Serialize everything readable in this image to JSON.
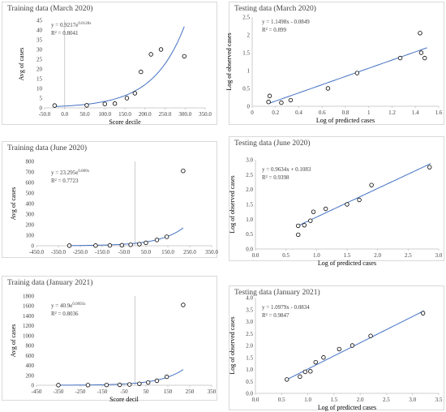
{
  "chart_data": [
    {
      "type": "scatter",
      "title": "Training data (March 2020)",
      "xlabel": "Score decile",
      "ylabel": "Avg of cases",
      "xlim": [
        -50,
        350
      ],
      "ylim": [
        0,
        45
      ],
      "xticks": [
        -50,
        0,
        50,
        100,
        150,
        200,
        250,
        300,
        350
      ],
      "yticks": [
        0,
        5,
        10,
        15,
        20,
        25,
        30,
        35,
        40,
        45
      ],
      "xtick_labels": [
        "-50.0",
        "0.0",
        "50.0",
        "100.0",
        "150.0",
        "200.0",
        "250.0",
        "300.0",
        "350.0"
      ],
      "ytick_labels": [
        "0",
        "5",
        "10",
        "15",
        "20",
        "25",
        "30",
        "35",
        "40",
        "45"
      ],
      "points": [
        [
          -25,
          1.2
        ],
        [
          55,
          1.3
        ],
        [
          100,
          2
        ],
        [
          125,
          2.2
        ],
        [
          155,
          5
        ],
        [
          175,
          7.5
        ],
        [
          190,
          18.5
        ],
        [
          215,
          27.5
        ],
        [
          240,
          30
        ],
        [
          298,
          26.5
        ]
      ],
      "fit": {
        "kind": "exp",
        "a": 0.9217,
        "b": 0.0128,
        "x_from": -25,
        "x_to": 298
      },
      "equation": "y = 0.9217e",
      "equation_exp": "0.0128x",
      "r2": "R² = 0.8041"
    },
    {
      "type": "scatter",
      "title": "Testing data (March 2020)",
      "xlabel": "Log of predicted cases",
      "ylabel": "Log of observed cases",
      "xlim": [
        0,
        1.6
      ],
      "ylim": [
        0,
        2.5
      ],
      "xticks": [
        0,
        0.2,
        0.4,
        0.6,
        0.8,
        1.0,
        1.2,
        1.4,
        1.6
      ],
      "yticks": [
        0,
        0.5,
        1.0,
        1.5,
        2.0,
        2.5
      ],
      "xtick_labels": [
        "0",
        "0.2",
        "0.4",
        "0.6",
        "0.8",
        "1",
        "1.2",
        "1.4",
        "1.6"
      ],
      "ytick_labels": [
        "0",
        "0.5",
        "1",
        "1.5",
        "2",
        "2.5"
      ],
      "points": [
        [
          0.14,
          0.12
        ],
        [
          0.15,
          0.29
        ],
        [
          0.25,
          0.1
        ],
        [
          0.33,
          0.17
        ],
        [
          0.65,
          0.5
        ],
        [
          0.9,
          0.93
        ],
        [
          1.27,
          1.35
        ],
        [
          1.44,
          2.05
        ],
        [
          1.45,
          1.5
        ],
        [
          1.48,
          1.35
        ]
      ],
      "fit": {
        "kind": "linear",
        "m": 1.1498,
        "c": -0.0849,
        "x_from": 0.14,
        "x_to": 1.5
      },
      "equation": "y = 1.1498x - 0.0849",
      "r2": "R² = 0.899"
    },
    {
      "type": "scatter",
      "title": "Training data (June 2020)",
      "xlabel": "",
      "ylabel": "Avg of cases",
      "xlim": [
        -450,
        350
      ],
      "ylim": [
        0,
        800
      ],
      "xticks": [
        -450,
        -350,
        -250,
        -150,
        -50,
        50,
        150,
        250,
        350
      ],
      "yticks": [
        0,
        100,
        200,
        300,
        400,
        500,
        600,
        700,
        800
      ],
      "xtick_labels": [
        "-450.0",
        "-350.0",
        "-250.0",
        "-150.0",
        "-50.0",
        "50.0",
        "150.0",
        "250.0",
        "350.0"
      ],
      "ytick_labels": [
        "0",
        "100",
        "200",
        "300",
        "400",
        "500",
        "600",
        "700",
        "800"
      ],
      "points": [
        [
          -300,
          1
        ],
        [
          -180,
          2
        ],
        [
          -115,
          3
        ],
        [
          -60,
          5
        ],
        [
          -20,
          9
        ],
        [
          20,
          15
        ],
        [
          50,
          28
        ],
        [
          100,
          55
        ],
        [
          145,
          85
        ],
        [
          220,
          710
        ]
      ],
      "fit": {
        "kind": "exp",
        "a": 23.295,
        "b": 0.009,
        "x_from": -300,
        "x_to": 220
      },
      "equation": "y = 23.295e",
      "equation_exp": "0.009x",
      "r2": "R² = 0.7723"
    },
    {
      "type": "scatter",
      "title": "Testing data (June 2020)",
      "xlabel": "Log of predicted cases",
      "ylabel": "Log of observed cases",
      "xlim": [
        0,
        3
      ],
      "ylim": [
        0,
        3
      ],
      "xticks": [
        0,
        0.5,
        1.0,
        1.5,
        2.0,
        2.5,
        3.0
      ],
      "yticks": [
        0,
        0.5,
        1.0,
        1.5,
        2.0,
        2.5,
        3.0
      ],
      "xtick_labels": [
        "0.0",
        "0.5",
        "1.0",
        "1.5",
        "2.0",
        "2.5",
        "3.0"
      ],
      "ytick_labels": [
        "0.0",
        "0.5",
        "1.0",
        "1.5",
        "2.0",
        "2.5",
        "3.0"
      ],
      "points": [
        [
          0.7,
          0.48
        ],
        [
          0.7,
          0.78
        ],
        [
          0.8,
          0.8
        ],
        [
          0.9,
          0.95
        ],
        [
          0.95,
          1.25
        ],
        [
          1.15,
          1.35
        ],
        [
          1.5,
          1.5
        ],
        [
          1.7,
          1.65
        ],
        [
          1.9,
          2.15
        ],
        [
          2.85,
          2.75
        ]
      ],
      "fit": {
        "kind": "linear",
        "m": 0.9634,
        "c": 0.1083,
        "x_from": 0.68,
        "x_to": 2.87
      },
      "equation": "y = 0.9634x + 0.1083",
      "r2": "R² = 0.9398"
    },
    {
      "type": "scatter",
      "title": "Trainig data (January 2021)",
      "xlabel": "Score decil",
      "ylabel": "Avg of cases",
      "xlim": [
        -450,
        350
      ],
      "ylim": [
        0,
        1800
      ],
      "xticks": [
        -450,
        -350,
        -250,
        -150,
        -50,
        50,
        150,
        250,
        350
      ],
      "yticks": [
        0,
        200,
        400,
        600,
        800,
        1000,
        1200,
        1400,
        1600,
        1800
      ],
      "xtick_labels": [
        "-450",
        "-350",
        "-250",
        "-150",
        "-50",
        "50",
        "150",
        "250",
        "350"
      ],
      "ytick_labels": [
        "0",
        "200",
        "400",
        "600",
        "800",
        "1000",
        "1200",
        "1400",
        "1600",
        "1800"
      ],
      "points": [
        [
          -350,
          2
        ],
        [
          -215,
          3
        ],
        [
          -130,
          5
        ],
        [
          -70,
          8
        ],
        [
          -25,
          15
        ],
        [
          20,
          30
        ],
        [
          60,
          55
        ],
        [
          100,
          90
        ],
        [
          145,
          170
        ],
        [
          220,
          1620
        ]
      ],
      "fit": {
        "kind": "exp",
        "a": 40.9,
        "b": 0.0093,
        "x_from": -350,
        "x_to": 220
      },
      "equation": "y = 40.9e",
      "equation_exp": "0.0093x",
      "r2": "R² = 0.8036"
    },
    {
      "type": "scatter",
      "title": "Testing data (January 2021)",
      "xlabel": "Log of predicted cases",
      "ylabel": "Log of observed cases",
      "xlim": [
        0,
        3.5
      ],
      "ylim": [
        0,
        4
      ],
      "xticks": [
        0,
        0.5,
        1.0,
        1.5,
        2.0,
        2.5,
        3.0,
        3.5
      ],
      "yticks": [
        0,
        0.5,
        1.0,
        1.5,
        2.0,
        2.5,
        3.0,
        3.5,
        4.0
      ],
      "xtick_labels": [
        "0.0",
        "0.5",
        "1.0",
        "1.5",
        "2.0",
        "2.5",
        "3.0",
        "3.5"
      ],
      "ytick_labels": [
        "0.0",
        "0.5",
        "1.0",
        "1.5",
        "2.0",
        "2.5",
        "3.0",
        "3.5",
        "4.0"
      ],
      "points": [
        [
          0.6,
          0.58
        ],
        [
          0.85,
          0.7
        ],
        [
          0.95,
          0.9
        ],
        [
          1.05,
          0.92
        ],
        [
          1.15,
          1.3
        ],
        [
          1.3,
          1.5
        ],
        [
          1.6,
          1.85
        ],
        [
          1.85,
          2.0
        ],
        [
          2.2,
          2.4
        ],
        [
          3.2,
          3.35
        ]
      ],
      "fit": {
        "kind": "linear",
        "m": 1.0979,
        "c": -0.0834,
        "x_from": 0.6,
        "x_to": 3.22
      },
      "equation": "y = 1.0979x - 0.0834",
      "r2": "R² = 0.9847"
    }
  ]
}
